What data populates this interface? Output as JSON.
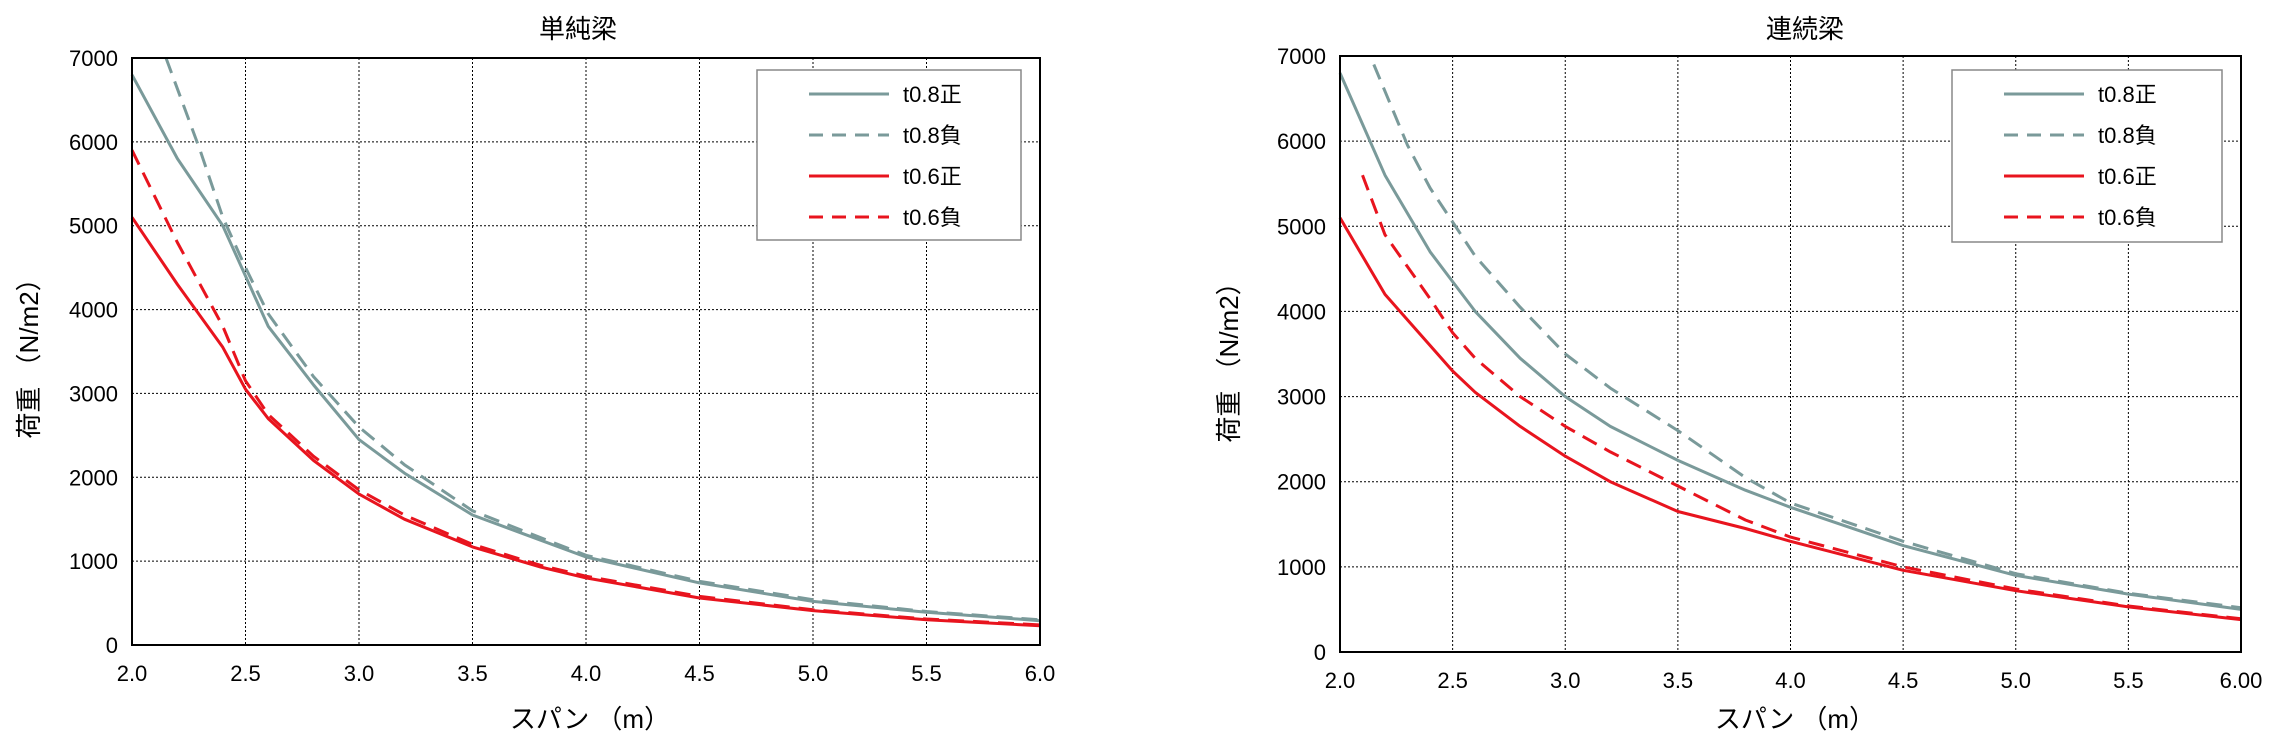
{
  "charts": [
    {
      "title": "単純梁",
      "xlabel": "スパン （m）",
      "ylabel": "荷重 （N/m2）",
      "x_ticks": [
        "2.0",
        "2.5",
        "3.0",
        "3.5",
        "4.0",
        "4.5",
        "5.0",
        "5.5",
        "6.0"
      ],
      "y_ticks": [
        "0",
        "1000",
        "2000",
        "3000",
        "4000",
        "5000",
        "6000",
        "7000"
      ]
    },
    {
      "title": "連続梁",
      "xlabel": "スパン （m）",
      "ylabel": "荷重 （N/m2）",
      "x_ticks": [
        "2.0",
        "2.5",
        "3.0",
        "3.5",
        "4.0",
        "4.5",
        "5.0",
        "5.5",
        "6.00"
      ],
      "y_ticks": [
        "0",
        "1000",
        "2000",
        "3000",
        "4000",
        "5000",
        "6000",
        "7000"
      ]
    }
  ],
  "chart_data": [
    {
      "type": "line",
      "title": "単純梁",
      "xlabel": "スパン （m）",
      "ylabel": "荷重 （N/m2）",
      "xlim": [
        2.0,
        6.0
      ],
      "ylim": [
        0,
        7000
      ],
      "grid": true,
      "legend_position": "top-right",
      "series": [
        {
          "name": "t0.8正",
          "color": "#7a9a9a",
          "dash": "solid",
          "x": [
            2.0,
            2.2,
            2.4,
            2.5,
            2.6,
            2.8,
            3.0,
            3.2,
            3.5,
            3.8,
            4.0,
            4.5,
            5.0,
            5.5,
            6.0
          ],
          "y": [
            6800,
            5800,
            5000,
            4400,
            3800,
            3100,
            2450,
            2050,
            1550,
            1250,
            1050,
            740,
            520,
            390,
            290
          ]
        },
        {
          "name": "t0.8負",
          "color": "#7a9a9a",
          "dash": "dashed",
          "x": [
            2.15,
            2.3,
            2.4,
            2.5,
            2.6,
            2.8,
            3.0,
            3.2,
            3.5,
            3.8,
            4.0,
            4.5,
            5.0,
            5.5,
            6.0
          ],
          "y": [
            7000,
            5900,
            5100,
            4500,
            3950,
            3200,
            2600,
            2150,
            1600,
            1280,
            1070,
            760,
            540,
            400,
            300
          ]
        },
        {
          "name": "t0.6正",
          "color": "#e8141e",
          "dash": "solid",
          "x": [
            2.0,
            2.2,
            2.4,
            2.5,
            2.6,
            2.8,
            3.0,
            3.2,
            3.5,
            3.8,
            4.0,
            4.5,
            5.0,
            5.5,
            6.0
          ],
          "y": [
            5100,
            4300,
            3550,
            3050,
            2700,
            2200,
            1800,
            1500,
            1170,
            930,
            800,
            560,
            410,
            300,
            230
          ]
        },
        {
          "name": "t0.6負",
          "color": "#e8141e",
          "dash": "dashed",
          "x": [
            2.0,
            2.2,
            2.4,
            2.5,
            2.6,
            2.8,
            3.0,
            3.2,
            3.5,
            3.8,
            4.0,
            4.5,
            5.0,
            5.5,
            6.0
          ],
          "y": [
            5900,
            4800,
            3800,
            3150,
            2750,
            2250,
            1850,
            1550,
            1200,
            950,
            820,
            580,
            420,
            310,
            240
          ]
        }
      ]
    },
    {
      "type": "line",
      "title": "連続梁",
      "xlabel": "スパン （m）",
      "ylabel": "荷重 （N/m2）",
      "xlim": [
        2.0,
        6.0
      ],
      "ylim": [
        0,
        7000
      ],
      "grid": true,
      "legend_position": "top-right",
      "series": [
        {
          "name": "t0.8正",
          "color": "#7a9a9a",
          "dash": "solid",
          "x": [
            2.0,
            2.2,
            2.4,
            2.5,
            2.6,
            2.8,
            3.0,
            3.2,
            3.5,
            3.8,
            4.0,
            4.5,
            5.0,
            5.5,
            6.0
          ],
          "y": [
            6800,
            5600,
            4700,
            4350,
            4000,
            3450,
            3000,
            2650,
            2250,
            1900,
            1700,
            1250,
            900,
            680,
            500
          ]
        },
        {
          "name": "t0.8負",
          "color": "#7a9a9a",
          "dash": "dashed",
          "x": [
            2.15,
            2.3,
            2.4,
            2.5,
            2.6,
            2.8,
            3.0,
            3.2,
            3.5,
            3.8,
            4.0,
            4.5,
            5.0,
            5.5,
            6.0
          ],
          "y": [
            6900,
            5950,
            5450,
            5050,
            4650,
            4050,
            3500,
            3100,
            2600,
            2050,
            1750,
            1300,
            920,
            690,
            520
          ]
        },
        {
          "name": "t0.6正",
          "color": "#e8141e",
          "dash": "solid",
          "x": [
            2.0,
            2.2,
            2.4,
            2.5,
            2.6,
            2.8,
            3.0,
            3.2,
            3.5,
            3.8,
            4.0,
            4.5,
            5.0,
            5.5,
            6.0
          ],
          "y": [
            5100,
            4200,
            3600,
            3300,
            3050,
            2650,
            2300,
            2000,
            1650,
            1450,
            1300,
            960,
            720,
            530,
            380
          ]
        },
        {
          "name": "t0.6負",
          "color": "#e8141e",
          "dash": "dashed",
          "x": [
            2.1,
            2.2,
            2.4,
            2.5,
            2.6,
            2.8,
            3.0,
            3.2,
            3.5,
            3.8,
            4.0,
            4.5,
            5.0,
            5.5,
            6.0
          ],
          "y": [
            5600,
            4900,
            4150,
            3750,
            3450,
            3000,
            2650,
            2350,
            1950,
            1550,
            1350,
            1000,
            740,
            540,
            390
          ]
        }
      ]
    }
  ]
}
